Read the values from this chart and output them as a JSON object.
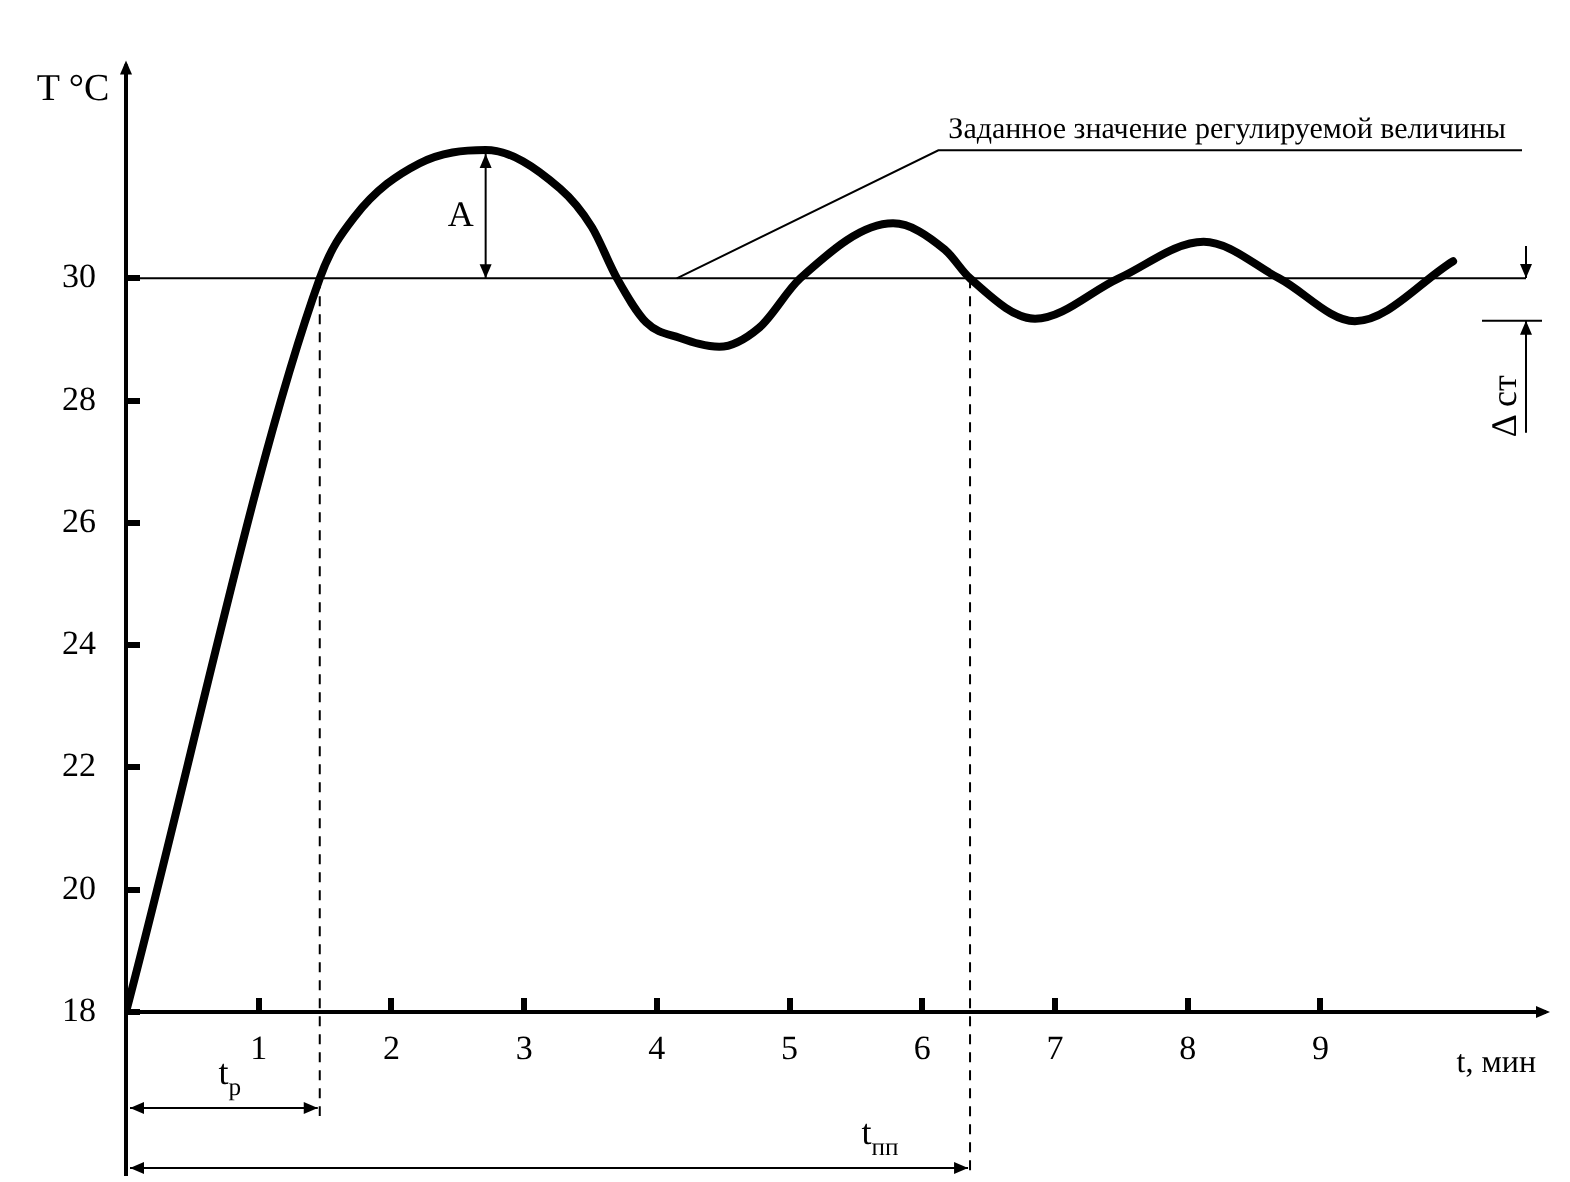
{
  "chart_data": {
    "type": "line",
    "xlabel": "t, мин",
    "ylabel": "T °C",
    "xlim": [
      0,
      10.7
    ],
    "xticks": [
      1,
      2,
      3,
      4,
      5,
      6,
      7,
      8,
      9
    ],
    "ylim": [
      18,
      33.5
    ],
    "yticks": [
      18,
      20,
      22,
      24,
      26,
      28,
      30
    ],
    "grid": false,
    "legend": false,
    "marker": "none",
    "line_style": "solid",
    "series": [
      {
        "color": "#000000",
        "x": [
          0,
          1.46,
          1.72,
          2.21,
          2.71,
          3.27,
          3.51,
          3.7,
          3.92,
          4.17,
          4.47,
          4.77,
          5.08,
          5.78,
          6.17,
          6.36,
          6.85,
          7.48,
          8.12,
          8.69,
          9.26,
          10.0
        ],
        "values": [
          18,
          30,
          31.0,
          31.88,
          32.1,
          31.47,
          30.84,
          30,
          29.28,
          29.03,
          28.88,
          29.19,
          30,
          30.9,
          30.47,
          30,
          29.34,
          30,
          30.6,
          30,
          29.3,
          30.28
        ]
      }
    ],
    "ref_lines": [
      {
        "axis": "y",
        "value": 30,
        "label": "Заданное значение регулируемой величины",
        "line_style": "solid"
      },
      {
        "axis": "x",
        "value": 1.46,
        "label": "t$_{р}$",
        "line_style": "dashed"
      },
      {
        "axis": "x",
        "value": 6.36,
        "label": "t$_{пп}$",
        "line_style": "dashed"
      }
    ],
    "annotations": [
      "A",
      "Δ ст"
    ]
  }
}
